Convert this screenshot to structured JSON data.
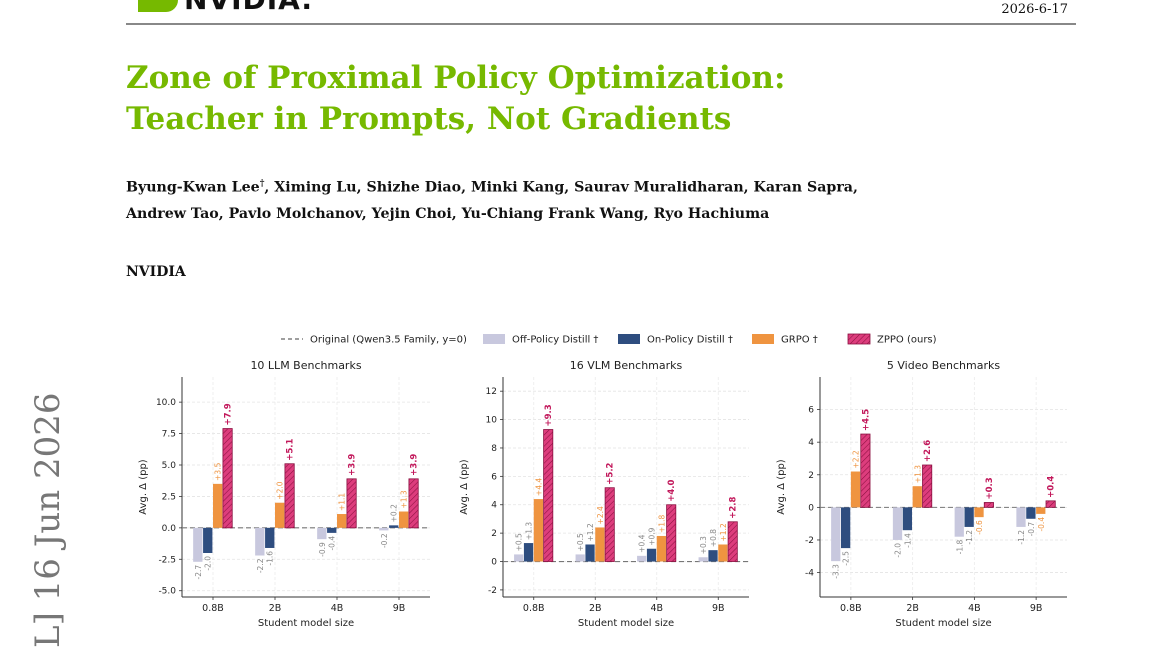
{
  "header": {
    "logo_text": "NVIDIA.",
    "date": "2026-6-17"
  },
  "paper": {
    "title_line1": "Zone of Proximal Policy Optimization:",
    "title_line2": "Teacher in Prompts, Not Gradients",
    "authors_line1": "Byung-Kwan Lee",
    "author_mark": "†",
    "authors_line1_rest": ", Ximing Lu, Shizhe Diao, Minki Kang, Saurav Muralidharan, Karan Sapra,",
    "authors_line2": "Andrew Tao, Pavlo Molchanov, Yejin Choi, Yu-Chiang Frank Wang, Ryo Hachiuma",
    "affiliation": "NVIDIA",
    "arxiv_stamp": "L]  16 Jun 2026"
  },
  "colors": {
    "brand_green": "#76b900",
    "off_policy": "#c8c8de",
    "on_policy": "#2e4d7f",
    "grpo": "#ef9440",
    "zppo": "#dd3d7d",
    "zppo_label": "#c2185b"
  },
  "legend": [
    {
      "key": "original",
      "label": "Original (Qwen3.5 Family, y=0)"
    },
    {
      "key": "off",
      "label": "Off-Policy Distill †"
    },
    {
      "key": "on",
      "label": "On-Policy Distill †"
    },
    {
      "key": "grpo",
      "label": "GRPO †"
    },
    {
      "key": "zppo",
      "label": "ZPPO (ours)"
    }
  ],
  "chart_data": [
    {
      "type": "bar",
      "title": "10 LLM Benchmarks",
      "xlabel": "Student model size",
      "ylabel": "Avg. Δ (pp)",
      "categories": [
        "0.8B",
        "2B",
        "4B",
        "9B"
      ],
      "ylim": [
        -5.5,
        12
      ],
      "yticks": [
        -5.0,
        -2.5,
        0.0,
        2.5,
        5.0,
        7.5,
        10.0
      ],
      "tick_format": "%.1f",
      "grid": true,
      "series": [
        {
          "name": "Off-Policy Distill",
          "values": [
            -2.7,
            -2.2,
            -0.9,
            -0.2
          ],
          "labels": [
            "-2.7",
            "-2.2",
            "-0.9",
            "-0.2"
          ]
        },
        {
          "name": "On-Policy Distill",
          "values": [
            -2.0,
            -1.6,
            -0.4,
            0.2
          ],
          "labels": [
            "-2.0",
            "-1.6",
            "-0.4",
            "+0.2"
          ]
        },
        {
          "name": "GRPO",
          "values": [
            3.5,
            2.0,
            1.1,
            1.3
          ],
          "labels": [
            "+3.5",
            "+2.0",
            "+1.1",
            "+1.3"
          ]
        },
        {
          "name": "ZPPO (ours)",
          "values": [
            7.9,
            5.1,
            3.9,
            3.9
          ],
          "labels": [
            "+7.9",
            "+5.1",
            "+3.9",
            "+3.9"
          ]
        }
      ]
    },
    {
      "type": "bar",
      "title": "16 VLM Benchmarks",
      "xlabel": "Student model size",
      "ylabel": "Avg. Δ (pp)",
      "categories": [
        "0.8B",
        "2B",
        "4B",
        "9B"
      ],
      "ylim": [
        -2.5,
        13
      ],
      "yticks": [
        -2,
        0,
        2,
        4,
        6,
        8,
        10,
        12
      ],
      "tick_format": "%d",
      "grid": true,
      "series": [
        {
          "name": "Off-Policy Distill",
          "values": [
            0.5,
            0.5,
            0.4,
            0.3
          ],
          "labels": [
            "+0.5",
            "+0.5",
            "+0.4",
            "+0.3"
          ]
        },
        {
          "name": "On-Policy Distill",
          "values": [
            1.3,
            1.2,
            0.9,
            0.8
          ],
          "labels": [
            "+1.3",
            "+1.2",
            "+0.9",
            "+0.8"
          ]
        },
        {
          "name": "GRPO",
          "values": [
            4.4,
            2.4,
            1.8,
            1.2
          ],
          "labels": [
            "+4.4",
            "+2.4",
            "+1.8",
            "+1.2"
          ]
        },
        {
          "name": "ZPPO (ours)",
          "values": [
            9.3,
            5.2,
            4.0,
            2.8
          ],
          "labels": [
            "+9.3",
            "+5.2",
            "+4.0",
            "+2.8"
          ]
        }
      ]
    },
    {
      "type": "bar",
      "title": "5 Video Benchmarks",
      "xlabel": "Student model size",
      "ylabel": "Avg. Δ (pp)",
      "categories": [
        "0.8B",
        "2B",
        "4B",
        "9B"
      ],
      "ylim": [
        -5.5,
        8
      ],
      "yticks": [
        -4,
        -2,
        0,
        2,
        4,
        6
      ],
      "tick_format": "%d",
      "grid": true,
      "series": [
        {
          "name": "Off-Policy Distill",
          "values": [
            -3.3,
            -2.0,
            -1.8,
            -1.2
          ],
          "labels": [
            "-3.3",
            "-2.0",
            "-1.8",
            "-1.2"
          ]
        },
        {
          "name": "On-Policy Distill",
          "values": [
            -2.5,
            -1.4,
            -1.2,
            -0.7
          ],
          "labels": [
            "-2.5",
            "-1.4",
            "-1.2",
            "-0.7"
          ]
        },
        {
          "name": "GRPO",
          "values": [
            2.2,
            1.3,
            -0.6,
            -0.4
          ],
          "labels": [
            "+2.2",
            "+1.3",
            "-0.6",
            "-0.4"
          ]
        },
        {
          "name": "ZPPO (ours)",
          "values": [
            4.5,
            2.6,
            0.3,
            0.4
          ],
          "labels": [
            "+4.5",
            "+2.6",
            "+0.3",
            "+0.4"
          ]
        }
      ]
    }
  ]
}
